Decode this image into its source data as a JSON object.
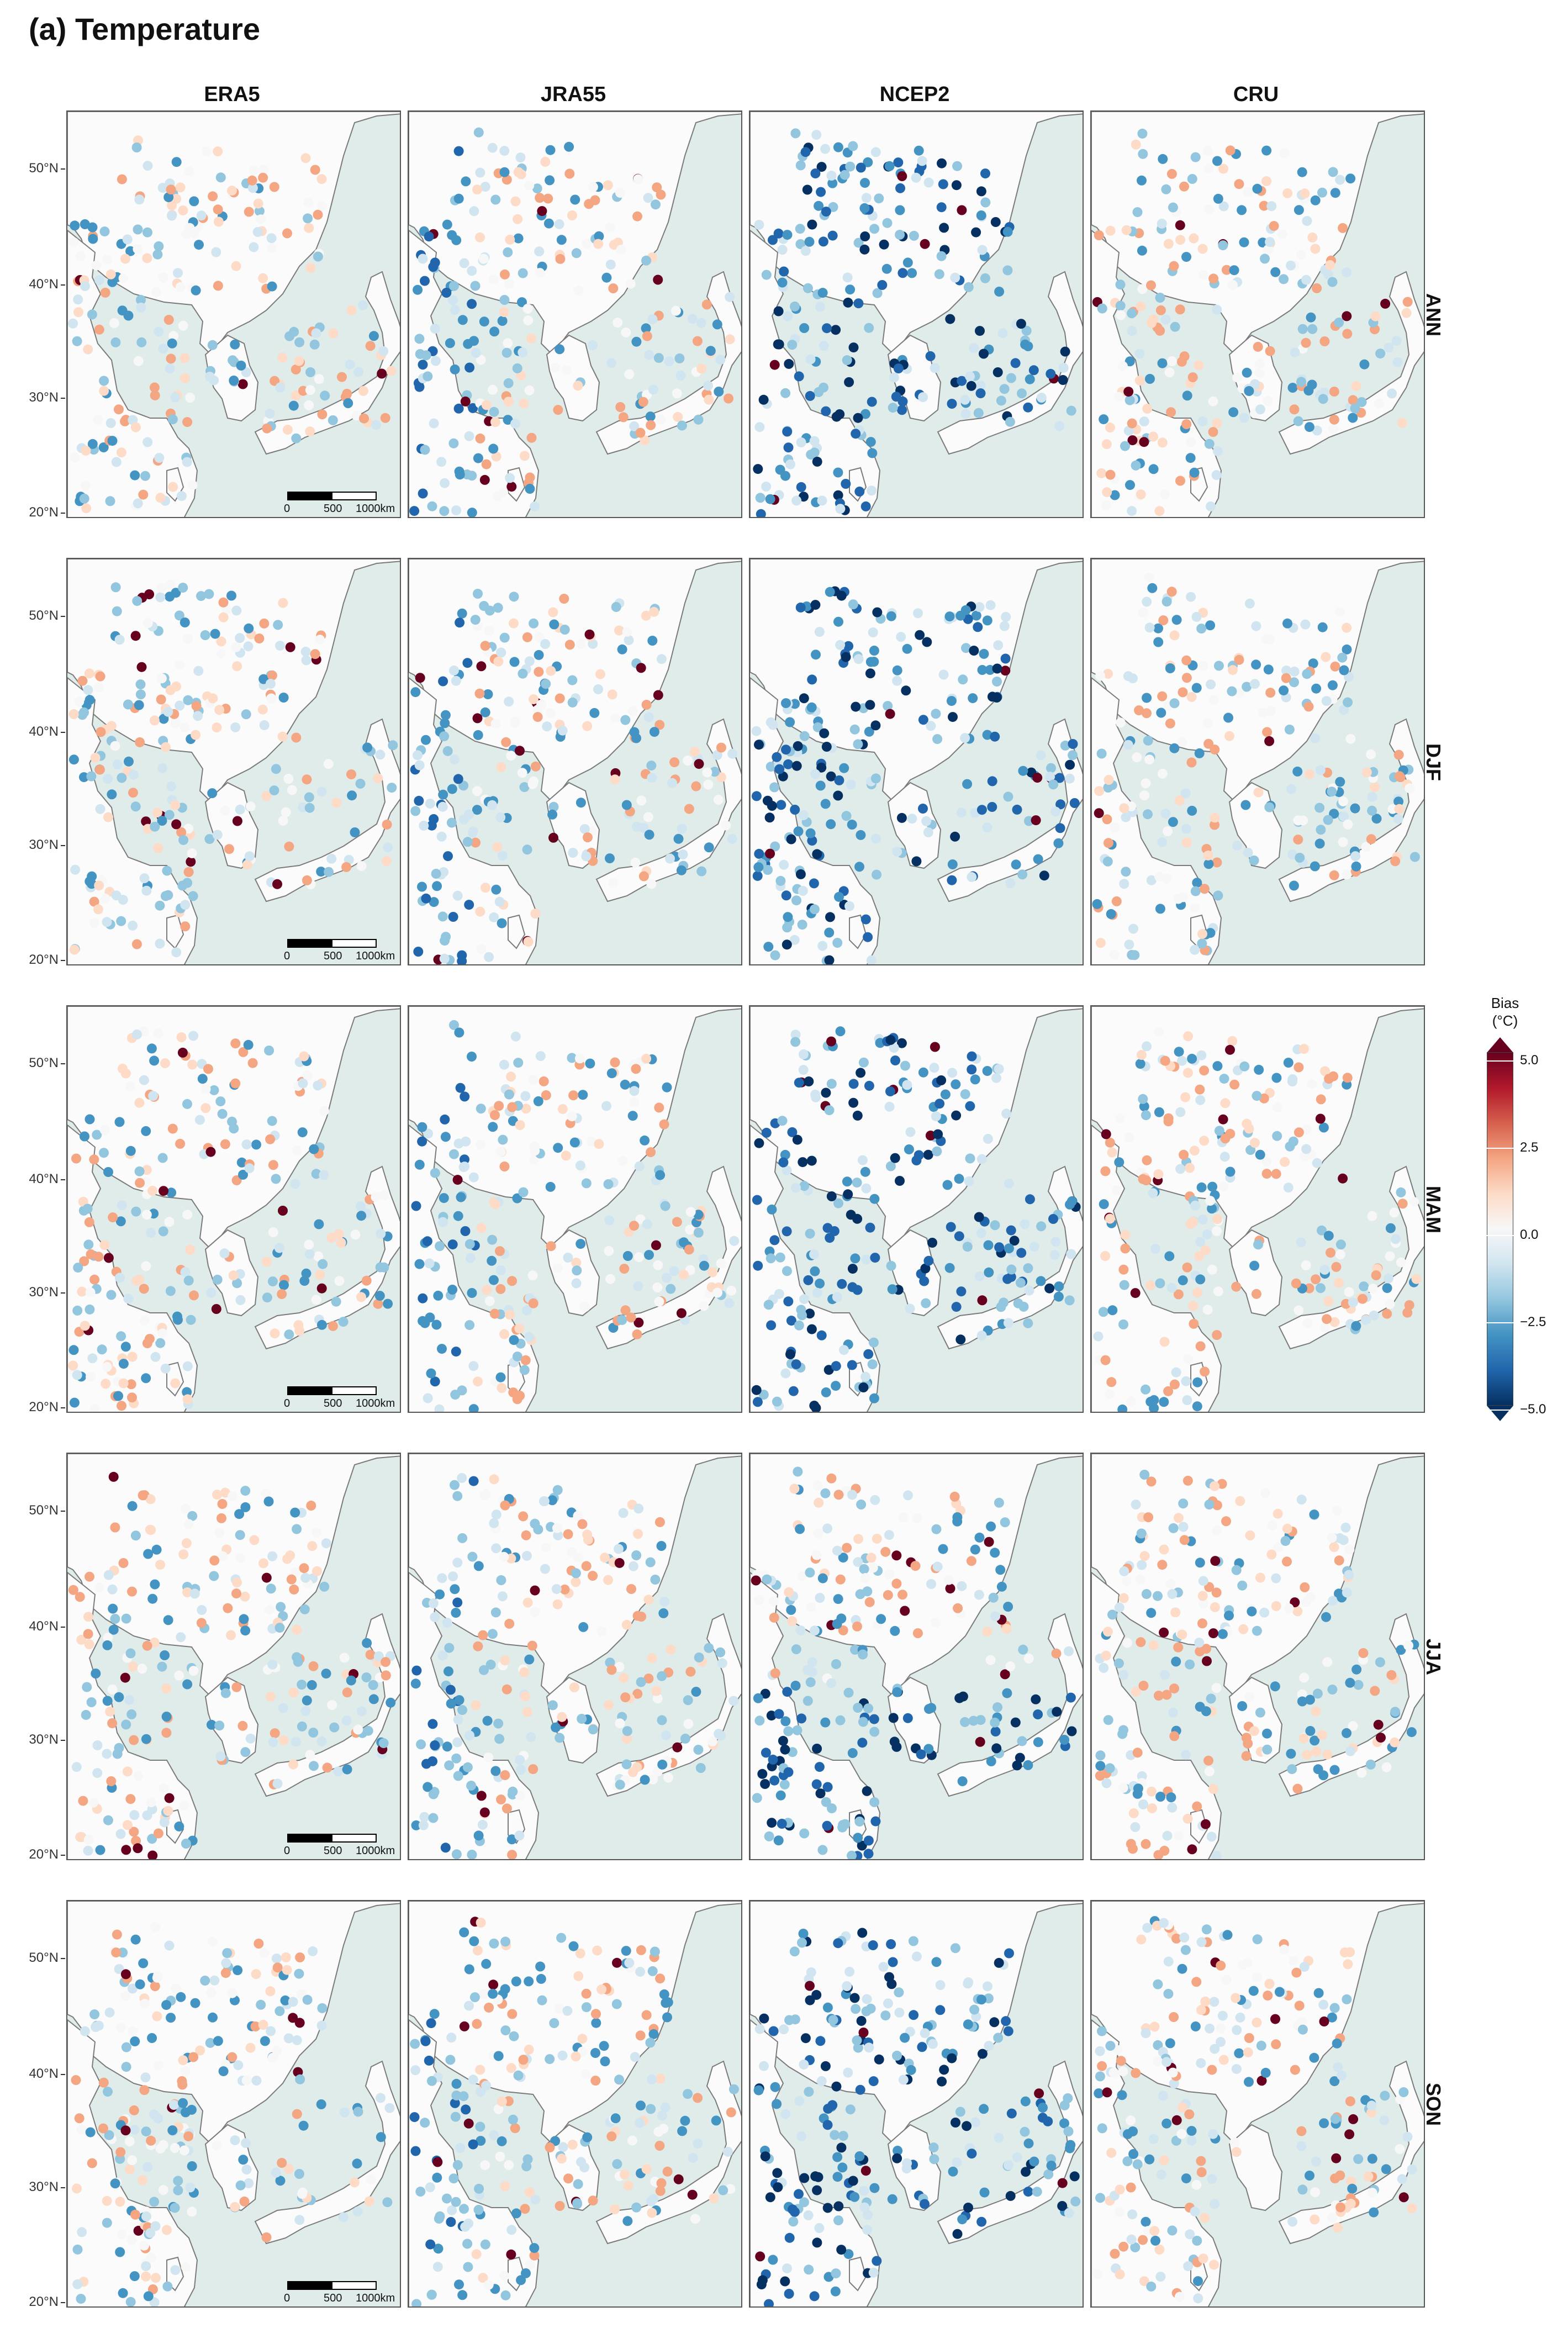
{
  "figure": {
    "title": "(a) Temperature"
  },
  "columns": [
    "ERA5",
    "JRA55",
    "NCEP2",
    "CRU"
  ],
  "rows": [
    "ANN",
    "DJF",
    "MAM",
    "JJA",
    "SON"
  ],
  "lat_labels": [
    "50°N",
    "40°N",
    "30°N",
    "20°N"
  ],
  "scalebar": {
    "labels": [
      "0",
      "500",
      "1000km"
    ]
  },
  "legend": {
    "title_line1": "Bias",
    "title_line2": "(°C)",
    "ticks": [
      "5.0",
      "2.5",
      "0.0",
      "−2.5",
      "−5.0"
    ],
    "colors": [
      "#67001f",
      "#b2182b",
      "#d6604d",
      "#f4a582",
      "#fddbc7",
      "#f7f7f7",
      "#d1e5f0",
      "#92c5de",
      "#4393c3",
      "#2166ac",
      "#053061"
    ]
  },
  "map_colors": {
    "land": "#fbfbfb",
    "ocean": "#dfecea",
    "coast": "#7a7a7a"
  },
  "icons": {
    "legend_top": "triangle-up",
    "legend_bottom": "triangle-down"
  }
}
